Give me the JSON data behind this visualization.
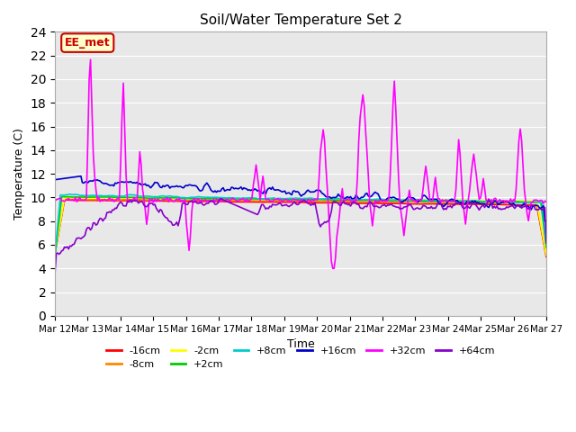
{
  "title": "Soil/Water Temperature Set 2",
  "xlabel": "Time",
  "ylabel": "Temperature (C)",
  "ylim": [
    0,
    24
  ],
  "yticks": [
    0,
    2,
    4,
    6,
    8,
    10,
    12,
    14,
    16,
    18,
    20,
    22,
    24
  ],
  "x_labels": [
    "Mar 12",
    "Mar 13",
    "Mar 14",
    "Mar 15",
    "Mar 16",
    "Mar 17",
    "Mar 18",
    "Mar 19",
    "Mar 20",
    "Mar 21",
    "Mar 22",
    "Mar 23",
    "Mar 24",
    "Mar 25",
    "Mar 26",
    "Mar 27"
  ],
  "annotation_text": "EE_met",
  "annotation_bg": "#ffffcc",
  "annotation_border": "#cc0000",
  "bg_color": "#e8e8e8",
  "series_colors": {
    "-16cm": "#ff0000",
    "-8cm": "#ff8800",
    "-2cm": "#ffff00",
    "+2cm": "#00cc00",
    "+8cm": "#00cccc",
    "+16cm": "#0000cc",
    "+32cm": "#ff00ff",
    "+64cm": "#8800cc"
  },
  "series_linewidths": {
    "-16cm": 1.5,
    "-8cm": 1.5,
    "-2cm": 1.5,
    "+2cm": 1.5,
    "+8cm": 1.5,
    "+16cm": 1.5,
    "+32cm": 1.5,
    "+64cm": 1.5
  }
}
